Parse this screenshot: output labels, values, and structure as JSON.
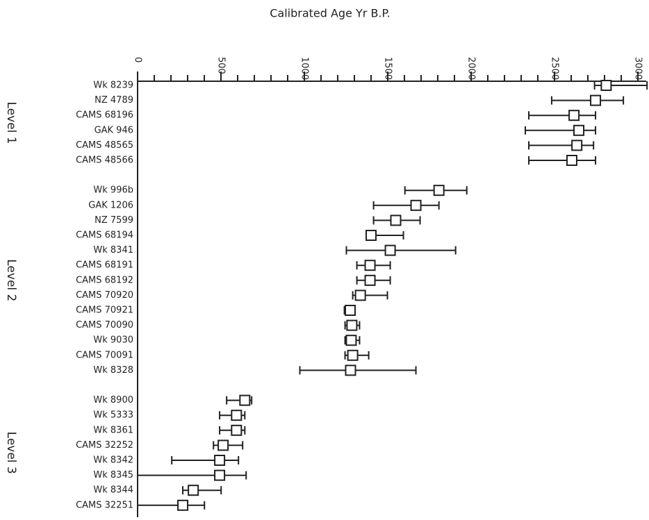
{
  "chart_data": {
    "type": "range",
    "title": "Calibrated Age Yr B.P.",
    "xlim": [
      0,
      3050
    ],
    "xticks": [
      0,
      500,
      1000,
      1500,
      2000,
      2500,
      3000
    ],
    "minor_xticks": [
      100,
      200,
      300,
      400,
      600,
      700,
      800,
      900,
      1100,
      1200,
      1300,
      1400,
      1600,
      1700,
      1800,
      1900,
      2100,
      2200,
      2300,
      2400,
      2600,
      2700,
      2800,
      2900
    ],
    "groups": [
      {
        "name": "Level 1",
        "samples": [
          {
            "label": "Wk 8239",
            "value": 2810,
            "low": 2740,
            "high": 3055
          },
          {
            "label": "NZ 4789",
            "value": 2746,
            "low": 2483,
            "high": 2913
          },
          {
            "label": "CAMS 68196",
            "value": 2617,
            "low": 2346,
            "high": 2746
          },
          {
            "label": "GAK 946",
            "value": 2646,
            "low": 2325,
            "high": 2746
          },
          {
            "label": "CAMS 48565",
            "value": 2634,
            "low": 2346,
            "high": 2734
          },
          {
            "label": "CAMS 48566",
            "value": 2604,
            "low": 2346,
            "high": 2746
          }
        ]
      },
      {
        "name": "Level 2",
        "samples": [
          {
            "label": "Wk 996b",
            "value": 1807,
            "low": 1603,
            "high": 1974
          },
          {
            "label": "GAK 1206",
            "value": 1669,
            "low": 1415,
            "high": 1807
          },
          {
            "label": "NZ 7599",
            "value": 1548,
            "low": 1415,
            "high": 1694
          },
          {
            "label": "CAMS 68194",
            "value": 1400,
            "low": 1385,
            "high": 1594
          },
          {
            "label": "Wk 8341",
            "value": 1515,
            "low": 1252,
            "high": 1907
          },
          {
            "label": "CAMS 68191",
            "value": 1394,
            "low": 1315,
            "high": 1515
          },
          {
            "label": "CAMS 68192",
            "value": 1394,
            "low": 1315,
            "high": 1515
          },
          {
            "label": "CAMS 70920",
            "value": 1336,
            "low": 1290,
            "high": 1498
          },
          {
            "label": "CAMS 70921",
            "value": 1275,
            "low": 1240,
            "high": 1280
          },
          {
            "label": "CAMS 70090",
            "value": 1285,
            "low": 1244,
            "high": 1331
          },
          {
            "label": "Wk 9030",
            "value": 1281,
            "low": 1244,
            "high": 1331
          },
          {
            "label": "CAMS 70091",
            "value": 1290,
            "low": 1244,
            "high": 1386
          },
          {
            "label": "Wk 8328",
            "value": 1277,
            "low": 973,
            "high": 1669
          }
        ]
      },
      {
        "name": "Level 3",
        "samples": [
          {
            "label": "Wk 8900",
            "value": 643,
            "low": 534,
            "high": 684
          },
          {
            "label": "Wk 5333",
            "value": 593,
            "low": 492,
            "high": 643
          },
          {
            "label": "Wk 8361",
            "value": 593,
            "low": 492,
            "high": 643
          },
          {
            "label": "CAMS 32252",
            "value": 513,
            "low": 455,
            "high": 630
          },
          {
            "label": "Wk 8342",
            "value": 492,
            "low": 205,
            "high": 605
          },
          {
            "label": "Wk 8345",
            "value": 492,
            "low": 0,
            "high": 651
          },
          {
            "label": "Wk 8344",
            "value": 334,
            "low": 271,
            "high": 501
          },
          {
            "label": "CAMS 32251",
            "value": 271,
            "low": 0,
            "high": 401
          }
        ]
      }
    ]
  }
}
